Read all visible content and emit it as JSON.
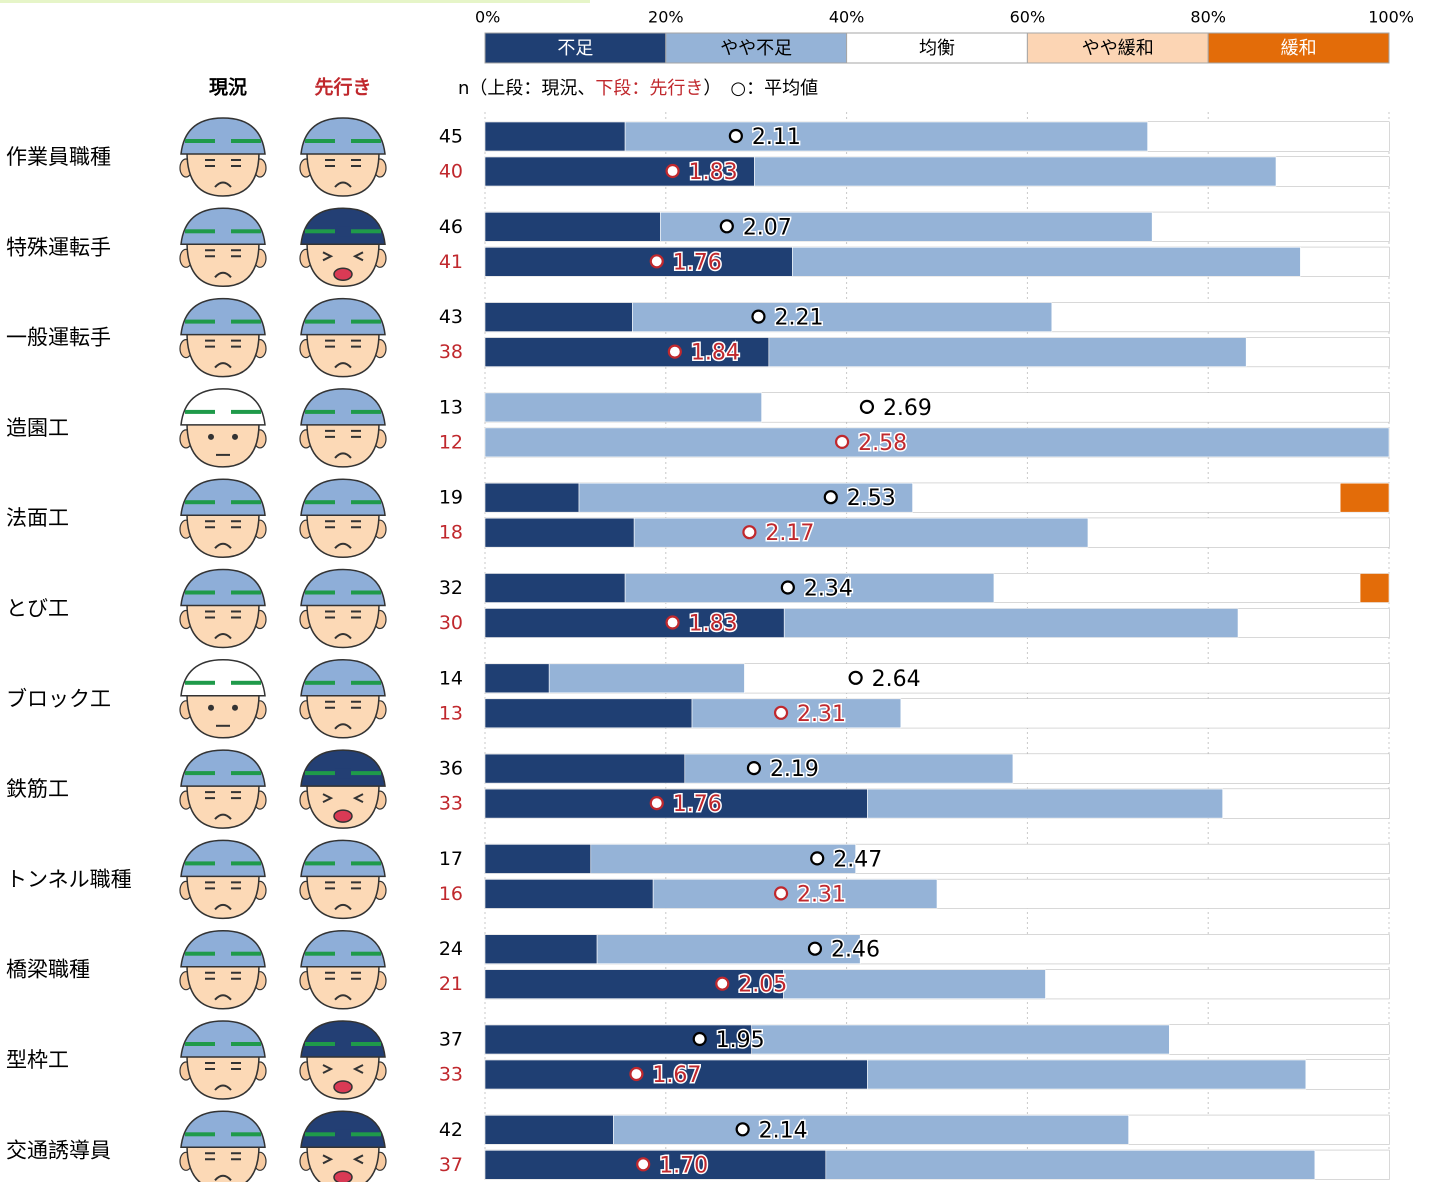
{
  "chart_data": {
    "type": "bar",
    "stacked": true,
    "orientation": "horizontal",
    "column_headers": [
      "現況",
      "先行き"
    ],
    "note_parts": [
      "n（上段：現況、",
      "下段：先行き",
      "）　○：平均値"
    ],
    "xlim": [
      0,
      100
    ],
    "xticks": [
      {
        "value": 0,
        "label": "0%"
      },
      {
        "value": 20,
        "label": "20%"
      },
      {
        "value": 40,
        "label": "40%"
      },
      {
        "value": 60,
        "label": "60%"
      },
      {
        "value": 80,
        "label": "80%"
      },
      {
        "value": 100,
        "label": "100%"
      }
    ],
    "grid": true,
    "categories": [
      "作業員職種",
      "特殊運転手",
      "一般運転手",
      "造園工",
      "法面工",
      "とび工",
      "ブロック工",
      "鉄筋工",
      "トンネル職種",
      "橋梁職種",
      "型枠工",
      "交通誘導員"
    ],
    "series": [
      {
        "name": "不足",
        "color": "#1f3f73",
        "current": [
          15.5,
          19.4,
          16.3,
          0,
          10.4,
          15.5,
          7.1,
          22.1,
          11.7,
          12.4,
          29.5,
          14.2
        ],
        "outlook": [
          29.8,
          34.0,
          31.4,
          0,
          16.5,
          33.1,
          22.9,
          42.3,
          18.6,
          33.0,
          42.3,
          37.7
        ]
      },
      {
        "name": "やや不足",
        "color": "#95b3d7",
        "current": [
          57.8,
          54.4,
          46.4,
          30.6,
          36.9,
          40.8,
          21.6,
          36.3,
          29.3,
          29.1,
          46.2,
          57.0
        ],
        "outlook": [
          57.7,
          56.2,
          52.8,
          100,
          50.2,
          50.2,
          23.1,
          39.3,
          31.4,
          29.0,
          48.5,
          54.1
        ]
      },
      {
        "name": "均衡",
        "color": "#ffffff",
        "current": [
          26.7,
          26.2,
          37.3,
          69.4,
          47.3,
          40.5,
          71.3,
          41.6,
          59.0,
          58.5,
          24.3,
          28.8
        ],
        "outlook": [
          12.5,
          9.8,
          15.8,
          0,
          33.3,
          16.7,
          54.0,
          18.4,
          50.0,
          38.0,
          9.2,
          8.2
        ]
      },
      {
        "name": "やや緩和",
        "color": "#fcd5b4",
        "current": [
          0,
          0,
          0,
          0,
          0,
          0,
          0,
          0,
          0,
          0,
          0,
          0
        ],
        "outlook": [
          0,
          0,
          0,
          0,
          0,
          0,
          0,
          0,
          0,
          0,
          0,
          0
        ]
      },
      {
        "name": "緩和",
        "color": "#e36c09",
        "current": [
          0,
          0,
          0,
          0,
          5.4,
          3.2,
          0,
          0,
          0,
          0,
          0,
          0
        ],
        "outlook": [
          0,
          0,
          0,
          0,
          0,
          0,
          0,
          0,
          0,
          0,
          0,
          0
        ]
      }
    ],
    "n": {
      "current": [
        45,
        46,
        43,
        13,
        19,
        32,
        14,
        36,
        17,
        24,
        37,
        42
      ],
      "outlook": [
        40,
        41,
        38,
        12,
        18,
        30,
        13,
        33,
        16,
        21,
        33,
        37
      ]
    },
    "mean": {
      "current": {
        "values": [
          2.11,
          2.07,
          2.21,
          2.69,
          2.53,
          2.34,
          2.64,
          2.19,
          2.47,
          2.46,
          1.95,
          2.14
        ]
      },
      "outlook": {
        "values": [
          1.83,
          1.76,
          1.84,
          2.58,
          2.17,
          1.83,
          2.31,
          1.76,
          2.31,
          2.05,
          1.67,
          1.7
        ],
        "value_labels": [
          "1.83",
          "1.76",
          "1.84",
          "2.58",
          "2.17",
          "1.83",
          "2.31",
          "1.76",
          "2.31",
          "2.05",
          "1.67",
          "1.70"
        ]
      }
    }
  }
}
